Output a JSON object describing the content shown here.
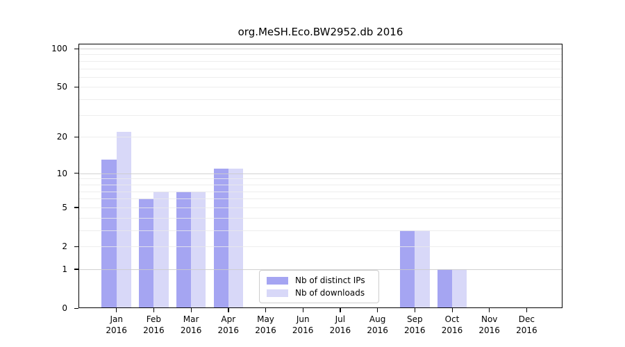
{
  "chart_data": {
    "type": "bar",
    "title": "org.MeSH.Eco.BW2952.db 2016",
    "categories": [
      "Jan",
      "Feb",
      "Mar",
      "Apr",
      "May",
      "Jun",
      "Jul",
      "Aug",
      "Sep",
      "Oct",
      "Nov",
      "Dec"
    ],
    "x_axis": {
      "year_label": "2016"
    },
    "series": [
      {
        "name": "Nb of distinct IPs",
        "color": "#a5a5f2",
        "values": [
          13,
          6,
          7,
          11,
          0,
          0,
          0,
          0,
          3,
          1,
          0,
          0
        ]
      },
      {
        "name": "Nb of downloads",
        "color": "#d8d8f8",
        "values": [
          22,
          7,
          7,
          11,
          0,
          0,
          0,
          0,
          3,
          1,
          0,
          0
        ]
      }
    ],
    "y_axis": {
      "scale": "log10(1+v)",
      "ylim": [
        0,
        110
      ],
      "ticks": [
        {
          "label": "100",
          "value": 100
        },
        {
          "label": "50",
          "value": 50
        },
        {
          "label": "20",
          "value": 20
        },
        {
          "label": "10",
          "value": 10
        },
        {
          "label": "5",
          "value": 5
        },
        {
          "label": "2",
          "value": 2
        },
        {
          "label": "1",
          "value": 1
        },
        {
          "label": "0",
          "value": 0
        }
      ],
      "major_gridlines": [
        1,
        10,
        100
      ],
      "minor_gridlines": [
        2,
        3,
        4,
        5,
        6,
        7,
        8,
        9,
        20,
        30,
        40,
        50,
        60,
        70,
        80,
        90
      ]
    },
    "legend": {
      "position": "inside-bottom-center",
      "entries": [
        "Nb of distinct IPs",
        "Nb of downloads"
      ]
    },
    "colors": {
      "major_grid": "#cccccc",
      "minor_grid": "#eaeaea",
      "axis": "#000000"
    }
  }
}
